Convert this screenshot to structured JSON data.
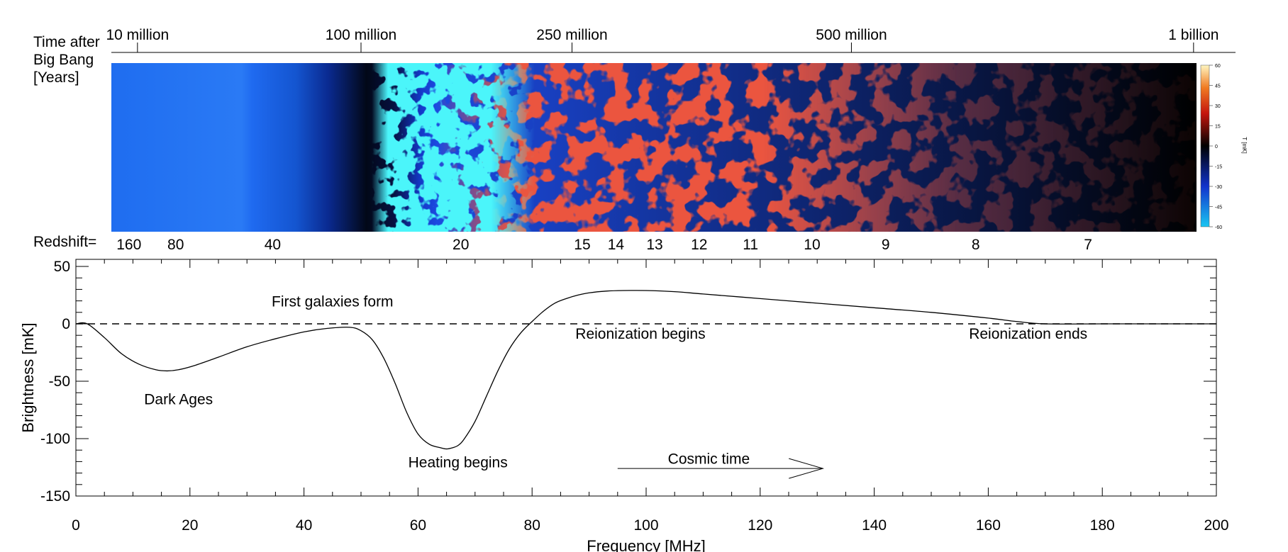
{
  "chart_data": {
    "type": "line",
    "xlabel": "Frequency [MHz]",
    "ylabel": "Brightness [mK]",
    "xlim": [
      0,
      200
    ],
    "ylim": [
      -150,
      60
    ],
    "xticks": [
      0,
      20,
      40,
      60,
      80,
      100,
      120,
      140,
      160,
      180,
      200
    ],
    "yticks": [
      50,
      0,
      -50,
      -100,
      -150
    ],
    "grid": false,
    "reference_line": {
      "y": 0,
      "style": "dashed"
    },
    "series": [
      {
        "x": [
          0,
          2,
          5,
          8,
          11,
          14,
          16,
          18,
          21,
          25,
          30,
          35,
          40,
          44,
          48,
          50,
          52,
          54,
          56,
          58,
          60,
          62,
          64,
          65,
          66,
          67,
          68,
          70,
          72,
          74,
          76,
          78,
          80,
          82,
          84,
          86,
          88,
          90,
          93,
          96,
          100,
          105,
          110,
          120,
          130,
          140,
          150,
          160,
          165,
          170,
          180,
          190,
          200
        ],
        "y": [
          0,
          0,
          -12,
          -26,
          -35,
          -40,
          -41,
          -40,
          -36,
          -29,
          -20,
          -13,
          -7,
          -4,
          -3,
          -6,
          -14,
          -30,
          -52,
          -77,
          -96,
          -105,
          -108,
          -109,
          -108,
          -106,
          -101,
          -85,
          -63,
          -41,
          -22,
          -8,
          2,
          11,
          18,
          22,
          25,
          27,
          28.5,
          29,
          29,
          28,
          26,
          22,
          18,
          14,
          10,
          5,
          2,
          0,
          0,
          0,
          0
        ]
      }
    ],
    "annotations": [
      {
        "text": "First galaxies form",
        "x": 45,
        "y": 20
      },
      {
        "text": "Dark Ages",
        "x": 18,
        "y": -65
      },
      {
        "text": "Heating begins",
        "x": 67,
        "y": -120
      },
      {
        "text": "Reionization begins",
        "x": 99,
        "y": -8
      },
      {
        "text": "Reionization ends",
        "x": 167,
        "y": -8
      },
      {
        "text": "Cosmic time",
        "x": 111,
        "y": -117
      }
    ],
    "cosmic_time_arrow": {
      "from": 95,
      "to": 131,
      "y": -126
    },
    "time_axis": {
      "label_lines": [
        "Time after",
        "Big Bang",
        "[Years]"
      ],
      "ticks": [
        {
          "label": "10 million",
          "freq": 10.8
        },
        {
          "label": "100 million",
          "freq": 50.0
        },
        {
          "label": "250 million",
          "freq": 87.0
        },
        {
          "label": "500 million",
          "freq": 136.0
        },
        {
          "label": "1 billion",
          "freq": 196.0
        }
      ]
    },
    "redshift_axis": {
      "label": "Redshift=",
      "ticks": [
        {
          "label": "160",
          "freq": 9.3
        },
        {
          "label": "80",
          "freq": 17.5
        },
        {
          "label": "40",
          "freq": 34.5
        },
        {
          "label": "20",
          "freq": 67.5
        },
        {
          "label": "15",
          "freq": 88.8
        },
        {
          "label": "14",
          "freq": 94.7
        },
        {
          "label": "13",
          "freq": 101.5
        },
        {
          "label": "12",
          "freq": 109.3
        },
        {
          "label": "11",
          "freq": 118.3
        },
        {
          "label": "10",
          "freq": 129.1
        },
        {
          "label": "9",
          "freq": 142.0
        },
        {
          "label": "8",
          "freq": 157.8
        },
        {
          "label": "7",
          "freq": 177.5
        }
      ]
    },
    "simulation_strip": {
      "colorbar": {
        "ticks": [
          "60",
          "45",
          "30",
          "15",
          "0",
          "-15",
          "-30",
          "-45",
          "-60"
        ],
        "label": "T [mK]"
      },
      "colors": {
        "blue": "#1f6df0",
        "dark_blue": "#0a1a7a",
        "cyan": "#12e8f5",
        "red": "#d31a10",
        "black": "#000000"
      }
    }
  }
}
